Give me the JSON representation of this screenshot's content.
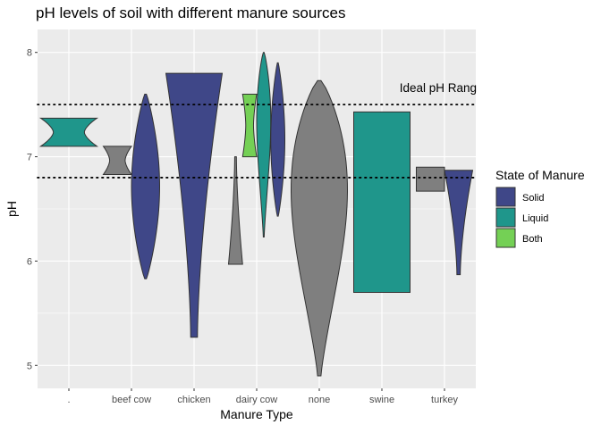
{
  "chart_data": {
    "type": "violin",
    "title": "pH levels of soil with different manure sources",
    "xlabel": "Manure Type",
    "ylabel": "pH",
    "categories": [
      ".",
      "beef cow",
      "chicken",
      "dairy cow",
      "none",
      "swine",
      "turkey"
    ],
    "yticks": [
      5,
      6,
      7,
      8
    ],
    "ylim": [
      4.78,
      8.22
    ],
    "grid": true,
    "legend": {
      "title": "State of Manure",
      "position": "right",
      "entries": [
        {
          "label": "Solid",
          "color": "#3F4788"
        },
        {
          "label": "Liquid",
          "color": "#1F968B"
        },
        {
          "label": "Both",
          "color": "#74D055"
        }
      ]
    },
    "reference_lines": [
      {
        "name": "ideal-ph-upper",
        "y": 7.5
      },
      {
        "name": "ideal-ph-lower",
        "y": 6.8
      }
    ],
    "annotation": {
      "text": "Ideal pH Rang",
      "y": 7.6,
      "near_category": "turkey"
    },
    "violins": [
      {
        "category": ".",
        "state": "Liquid",
        "min": 7.1,
        "max": 7.37,
        "shape": "notch"
      },
      {
        "category": "beef cow",
        "state": "NA",
        "min": 6.83,
        "max": 7.1,
        "shape": "notch"
      },
      {
        "category": "beef cow",
        "state": "Solid",
        "min": 5.83,
        "max": 7.6,
        "shape": "mid"
      },
      {
        "category": "chicken",
        "state": "Solid",
        "min": 5.27,
        "max": 7.8,
        "shape": "top"
      },
      {
        "category": "dairy cow",
        "state": "NA",
        "min": 5.97,
        "max": 7.0,
        "shape": "bottom"
      },
      {
        "category": "dairy cow",
        "state": "Both",
        "min": 7.0,
        "max": 7.6,
        "shape": "notch"
      },
      {
        "category": "dairy cow",
        "state": "Liquid",
        "min": 6.23,
        "max": 8.0,
        "shape": "upper"
      },
      {
        "category": "dairy cow",
        "state": "Solid",
        "min": 6.43,
        "max": 7.9,
        "shape": "mid"
      },
      {
        "category": "none",
        "state": "NA",
        "min": 4.9,
        "max": 7.73,
        "shape": "upper"
      },
      {
        "category": "swine",
        "state": "Liquid",
        "min": 5.7,
        "max": 7.43,
        "shape": "box"
      },
      {
        "category": "turkey",
        "state": "NA",
        "min": 6.67,
        "max": 6.9,
        "shape": "box"
      },
      {
        "category": "turkey",
        "state": "Solid",
        "min": 5.87,
        "max": 6.87,
        "shape": "top"
      }
    ],
    "colors": {
      "Solid": "#3F4788",
      "Liquid": "#1F968B",
      "Both": "#74D055",
      "NA": "#7F7F7F",
      "panel": "#EBEBEB",
      "grid": "#FFFFFF",
      "text": "#000000",
      "tick_text": "#4D4D4D",
      "outline": "#333333"
    }
  }
}
